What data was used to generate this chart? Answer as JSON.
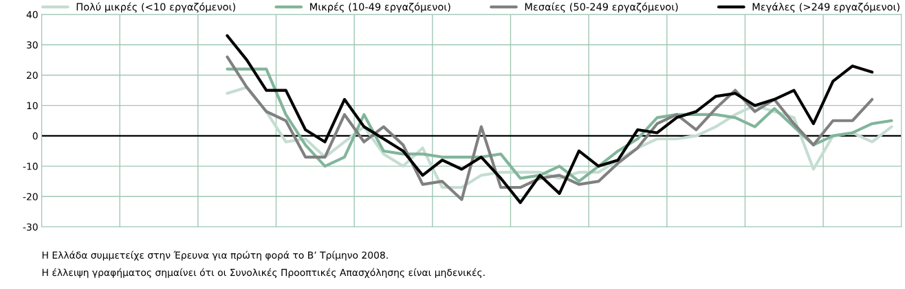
{
  "chart_data": {
    "type": "line",
    "categories": [
      null,
      null,
      null,
      null,
      null,
      null,
      null,
      null,
      null,
      null,
      null,
      null,
      null,
      null,
      null,
      null,
      null,
      null,
      null,
      null,
      null,
      null,
      null,
      null,
      null,
      null,
      null,
      null,
      null,
      null,
      null,
      null,
      null,
      null,
      null,
      null,
      null,
      null,
      null,
      null,
      null,
      null,
      null,
      null
    ],
    "series": [
      {
        "name": "Πολύ μικρές (<10 εργαζόμενοι)",
        "color": "#c5ddd2",
        "values": [
          null,
          null,
          null,
          null,
          null,
          null,
          null,
          null,
          null,
          14,
          16,
          8,
          -2,
          -1,
          -7,
          -2,
          3,
          -6,
          -10,
          -4,
          -17,
          -17,
          -13,
          -12,
          -12,
          -12,
          -14,
          -12,
          -12,
          -8,
          -4,
          -1,
          -1,
          0,
          3,
          7,
          10,
          8,
          6,
          -11,
          0,
          1,
          -2,
          3
        ]
      },
      {
        "name": "Μικρές (10-49 εργαζόμενοι)",
        "color": "#82b59b",
        "values": [
          null,
          null,
          null,
          null,
          null,
          null,
          null,
          null,
          null,
          22,
          22,
          22,
          7,
          -3,
          -10,
          -7,
          7,
          -5,
          -6,
          -6,
          -7,
          -7,
          -7,
          -6,
          -14,
          -13,
          -10,
          -15,
          -10,
          -5,
          -1,
          6,
          7,
          7,
          7,
          6,
          3,
          9,
          3,
          -3,
          0,
          1,
          4,
          5
        ]
      },
      {
        "name": "Μεσαίες (50-249 εργαζόμενοι)",
        "color": "#808080",
        "values": [
          null,
          null,
          null,
          null,
          null,
          null,
          null,
          null,
          null,
          26,
          16,
          8,
          5,
          -7,
          -7,
          7,
          -2,
          3,
          -3,
          -16,
          -15,
          -21,
          3,
          -17,
          -17,
          -14,
          -13,
          -16,
          -15,
          -9,
          -4,
          4,
          7,
          2,
          9,
          15,
          8,
          12,
          4,
          -3,
          5,
          5,
          12,
          null
        ]
      },
      {
        "name": "Μεγάλες (>249 εργαζόμενοι)",
        "color": "#000000",
        "values": [
          null,
          null,
          null,
          null,
          null,
          null,
          null,
          null,
          null,
          33,
          25,
          15,
          15,
          2,
          -2,
          12,
          3,
          -1,
          -5,
          -13,
          -8,
          -11,
          -7,
          -14,
          -22,
          -13,
          -19,
          -5,
          -10,
          -8,
          2,
          1,
          6,
          8,
          13,
          14,
          10,
          12,
          15,
          4,
          18,
          23,
          21,
          null
        ]
      }
    ],
    "ylim": [
      -30,
      40
    ],
    "yticks": [
      -30,
      -20,
      -10,
      0,
      10,
      20,
      30,
      40
    ],
    "ref_lines": [
      {
        "axis": "y",
        "value": 0,
        "color": "#000000"
      }
    ],
    "grid": true,
    "legend": "top",
    "marker": "none",
    "line_style": "solid",
    "annotations": [
      "Η Ελλάδα συμμετείχε στην Έρευνα για πρώτη φορά το Β’ Τρίμηνο 2008.",
      "Η έλλειψη γραφήματος σημαίνει ότι οι Συνολικές Προοπτικές Απασχόλησης είναι μηδενικές."
    ]
  }
}
